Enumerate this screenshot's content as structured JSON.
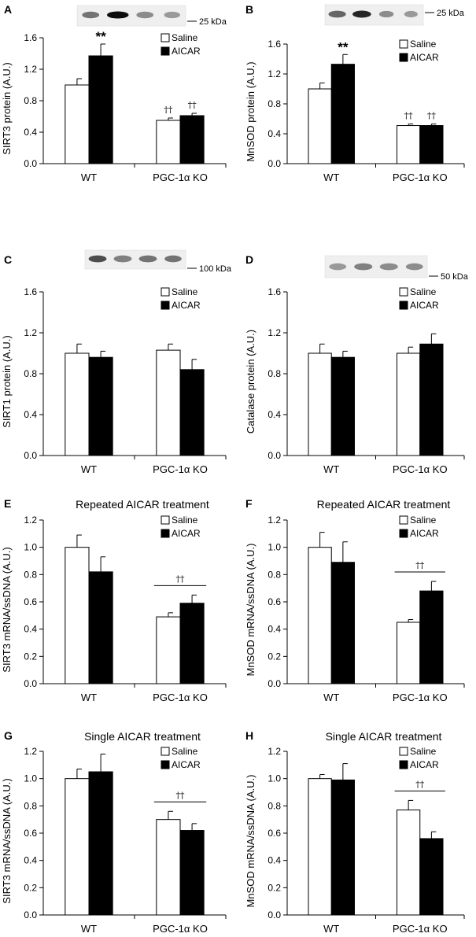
{
  "chart_data": [
    {
      "panel": "A",
      "type": "bar",
      "categories": [
        "WT",
        "PGC-1α KO"
      ],
      "series": [
        {
          "name": "Saline",
          "color": "#ffffff",
          "values": [
            1.0,
            0.55
          ],
          "errors": [
            0.08,
            0.03
          ]
        },
        {
          "name": "AICAR",
          "color": "#000000",
          "values": [
            1.37,
            0.61
          ],
          "errors": [
            0.15,
            0.03
          ]
        }
      ],
      "title": "",
      "xlabel": "",
      "ylabel": "SIRT3 protein (A.U.)",
      "ylim": [
        0,
        1.6
      ],
      "yticks": [
        "0.0",
        "0.4",
        "0.8",
        "1.2",
        "1.6"
      ],
      "legend": "top-right",
      "blot": {
        "lanes": 4,
        "marker": "25 kDa"
      },
      "annotations": [
        {
          "text": "**",
          "category": 0,
          "series": 1
        },
        {
          "text": "††",
          "category": 1,
          "series": 0
        },
        {
          "text": "††",
          "category": 1,
          "series": 1
        }
      ]
    },
    {
      "panel": "B",
      "type": "bar",
      "categories": [
        "WT",
        "PGC-1α KO"
      ],
      "series": [
        {
          "name": "Saline",
          "color": "#ffffff",
          "values": [
            1.0,
            0.51
          ],
          "errors": [
            0.08,
            0.02
          ]
        },
        {
          "name": "AICAR",
          "color": "#000000",
          "values": [
            1.33,
            0.51
          ],
          "errors": [
            0.13,
            0.02
          ]
        }
      ],
      "title": "",
      "xlabel": "",
      "ylabel": "MnSOD protein (A.U.)",
      "ylim": [
        0,
        1.6
      ],
      "yticks": [
        "0.0",
        "0.4",
        "0.8",
        "1.2",
        "1.6"
      ],
      "legend": "top-right",
      "blot": {
        "lanes": 4,
        "marker": "25 kDa"
      },
      "annotations": [
        {
          "text": "**",
          "category": 0,
          "series": 1
        },
        {
          "text": "††",
          "category": 1,
          "series": 0
        },
        {
          "text": "††",
          "category": 1,
          "series": 1
        }
      ]
    },
    {
      "panel": "C",
      "type": "bar",
      "categories": [
        "WT",
        "PGC-1α KO"
      ],
      "series": [
        {
          "name": "Saline",
          "color": "#ffffff",
          "values": [
            1.0,
            1.03
          ],
          "errors": [
            0.09,
            0.06
          ]
        },
        {
          "name": "AICAR",
          "color": "#000000",
          "values": [
            0.96,
            0.84
          ],
          "errors": [
            0.06,
            0.1
          ]
        }
      ],
      "title": "",
      "xlabel": "",
      "ylabel": "SIRT1 protein (A.U.)",
      "ylim": [
        0,
        1.6
      ],
      "yticks": [
        "0.0",
        "0.4",
        "0.8",
        "1.2",
        "1.6"
      ],
      "legend": "top-right",
      "blot": {
        "lanes": 4,
        "marker": "100 kDa"
      },
      "annotations": []
    },
    {
      "panel": "D",
      "type": "bar",
      "categories": [
        "WT",
        "PGC-1α KO"
      ],
      "series": [
        {
          "name": "Saline",
          "color": "#ffffff",
          "values": [
            1.0,
            1.0
          ],
          "errors": [
            0.09,
            0.06
          ]
        },
        {
          "name": "AICAR",
          "color": "#000000",
          "values": [
            0.96,
            1.09
          ],
          "errors": [
            0.06,
            0.1
          ]
        }
      ],
      "title": "",
      "xlabel": "",
      "ylabel": "Catalase protein (A.U.)",
      "ylim": [
        0,
        1.6
      ],
      "yticks": [
        "0.0",
        "0.4",
        "0.8",
        "1.2",
        "1.6"
      ],
      "legend": "top-right",
      "blot": {
        "lanes": 4,
        "marker": "50 kDa"
      },
      "annotations": []
    },
    {
      "panel": "E",
      "type": "bar",
      "categories": [
        "WT",
        "PGC-1α KO"
      ],
      "series": [
        {
          "name": "Saline",
          "color": "#ffffff",
          "values": [
            1.0,
            0.49
          ],
          "errors": [
            0.09,
            0.03
          ]
        },
        {
          "name": "AICAR",
          "color": "#000000",
          "values": [
            0.82,
            0.59
          ],
          "errors": [
            0.11,
            0.06
          ]
        }
      ],
      "title": "Repeated AICAR treatment",
      "xlabel": "",
      "ylabel": "SIRT3 mRNA/ssDNA (A.U.)",
      "ylim": [
        0,
        1.2
      ],
      "yticks": [
        "0.0",
        "0.2",
        "0.4",
        "0.6",
        "0.8",
        "1.0",
        "1.2"
      ],
      "legend": "top-right",
      "annotations": [
        {
          "text": "††",
          "category": 1,
          "bracket": true
        }
      ]
    },
    {
      "panel": "F",
      "type": "bar",
      "categories": [
        "WT",
        "PGC-1α KO"
      ],
      "series": [
        {
          "name": "Saline",
          "color": "#ffffff",
          "values": [
            1.0,
            0.45
          ],
          "errors": [
            0.11,
            0.02
          ]
        },
        {
          "name": "AICAR",
          "color": "#000000",
          "values": [
            0.89,
            0.68
          ],
          "errors": [
            0.15,
            0.07
          ]
        }
      ],
      "title": "Repeated AICAR treatment",
      "xlabel": "",
      "ylabel": "MnSOD mRNA/ssDNA (A.U.)",
      "ylim": [
        0,
        1.2
      ],
      "yticks": [
        "0.0",
        "0.2",
        "0.4",
        "0.6",
        "0.8",
        "1.0",
        "1.2"
      ],
      "legend": "top-right",
      "annotations": [
        {
          "text": "††",
          "category": 1,
          "bracket": true
        }
      ]
    },
    {
      "panel": "G",
      "type": "bar",
      "categories": [
        "WT",
        "PGC-1α KO"
      ],
      "series": [
        {
          "name": "Saline",
          "color": "#ffffff",
          "values": [
            1.0,
            0.7
          ],
          "errors": [
            0.07,
            0.06
          ]
        },
        {
          "name": "AICAR",
          "color": "#000000",
          "values": [
            1.05,
            0.62
          ],
          "errors": [
            0.13,
            0.05
          ]
        }
      ],
      "title": "Single AICAR treatment",
      "xlabel": "",
      "ylabel": "SIRT3 mRNA/ssDNA (A.U.)",
      "ylim": [
        0,
        1.2
      ],
      "yticks": [
        "0.0",
        "0.2",
        "0.4",
        "0.6",
        "0.8",
        "1.0",
        "1.2"
      ],
      "legend": "top-right",
      "annotations": [
        {
          "text": "††",
          "category": 1,
          "bracket": true
        }
      ]
    },
    {
      "panel": "H",
      "type": "bar",
      "categories": [
        "WT",
        "PGC-1α KO"
      ],
      "series": [
        {
          "name": "Saline",
          "color": "#ffffff",
          "values": [
            1.0,
            0.77
          ],
          "errors": [
            0.03,
            0.07
          ]
        },
        {
          "name": "AICAR",
          "color": "#000000",
          "values": [
            0.99,
            0.56
          ],
          "errors": [
            0.12,
            0.05
          ]
        }
      ],
      "title": "Single AICAR treatment",
      "xlabel": "",
      "ylabel": "MnSOD mRNA/ssDNA (A.U.)",
      "ylim": [
        0,
        1.2
      ],
      "yticks": [
        "0.0",
        "0.2",
        "0.4",
        "0.6",
        "0.8",
        "1.0",
        "1.2"
      ],
      "legend": "top-right",
      "annotations": [
        {
          "text": "††",
          "category": 1,
          "bracket": true
        }
      ]
    }
  ]
}
